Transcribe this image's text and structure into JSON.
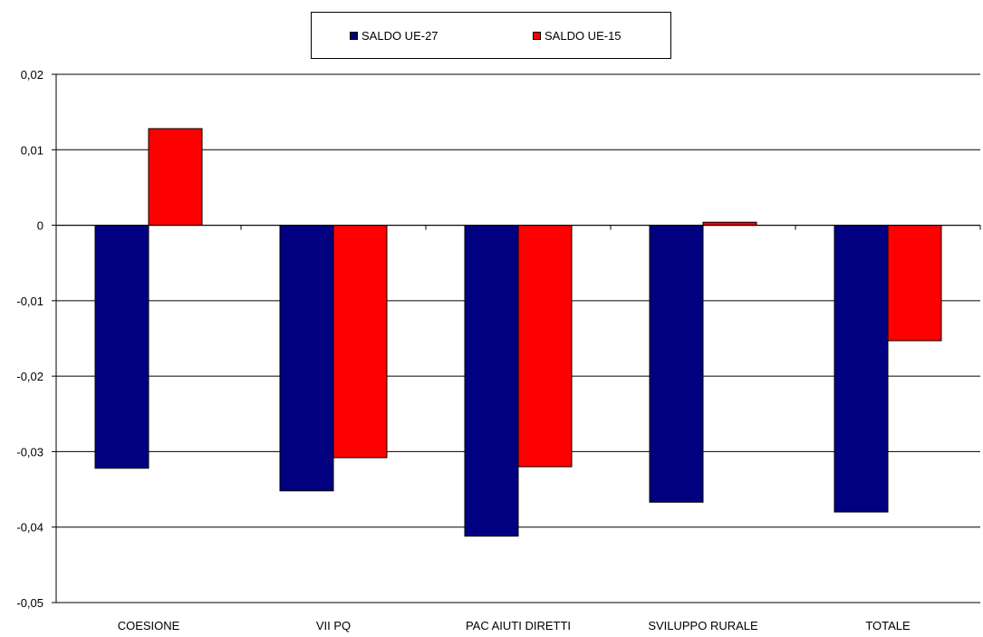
{
  "chart_data": {
    "type": "bar",
    "categories": [
      "COESIONE",
      "VII PQ",
      "PAC AIUTI DIRETTI",
      "SVILUPPO RURALE",
      "TOTALE"
    ],
    "series": [
      {
        "name": "SALDO UE-27",
        "color": "#000080",
        "values": [
          -0.0322,
          -0.0352,
          -0.0412,
          -0.0367,
          -0.038
        ]
      },
      {
        "name": "SALDO UE-15",
        "color": "#ff0000",
        "values": [
          0.0128,
          -0.0308,
          -0.032,
          0.0004,
          -0.0153
        ]
      }
    ],
    "ylim": [
      -0.05,
      0.02
    ],
    "yticks": [
      "0,02",
      "0,01",
      "0",
      "-0,01",
      "-0,02",
      "-0,03",
      "-0,04",
      "-0,05"
    ],
    "ytick_values": [
      0.02,
      0.01,
      0,
      -0.01,
      -0.02,
      -0.03,
      -0.04,
      -0.05
    ],
    "grid": true,
    "legend_position": "top-center"
  }
}
